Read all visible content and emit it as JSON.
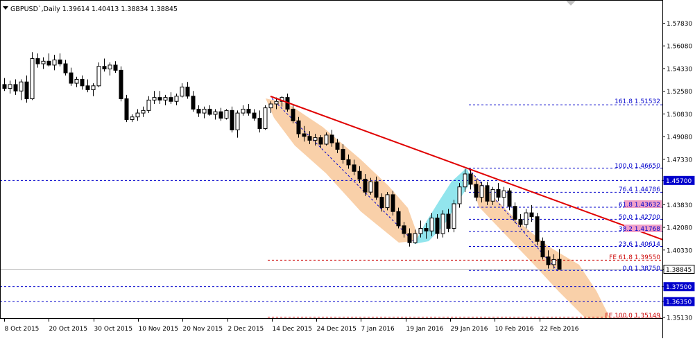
{
  "header": {
    "symbol_line": "GBPUSD`,Daily  1.39614 1.40413 1.38834 1.38845"
  },
  "colors": {
    "background": "#ffffff",
    "grid_frame": "#000000",
    "bull_candle": "#ffffff",
    "bear_candle": "#000000",
    "trendline": "#e00000",
    "fib_line": "#0000cc",
    "fe_line": "#cc0000",
    "down_channel": "#f8c89a",
    "up_channel": "#7fe0ea",
    "label_box": "#f0a0c8"
  },
  "price_axis": {
    "ticks": [
      "1.57830",
      "1.56080",
      "1.54330",
      "1.52580",
      "1.50830",
      "1.49080",
      "1.47330",
      "1.45700",
      "1.43830",
      "1.42080",
      "1.40330",
      "1.38845",
      "1.37500",
      "1.36350",
      "1.35130"
    ],
    "highlighted": [
      "1.45700",
      "1.38845",
      "1.37500",
      "1.36350"
    ]
  },
  "time_axis": {
    "labels": [
      "8 Oct 2015",
      "20 Oct 2015",
      "30 Oct 2015",
      "10 Nov 2015",
      "20 Nov 2015",
      "2 Dec 2015",
      "14 Dec 2015",
      "24 Dec 2015",
      "7 Jan 2016",
      "19 Jan 2016",
      "29 Jan 2016",
      "10 Feb 2016",
      "22 Feb 2016"
    ]
  },
  "fib_labels": [
    "161.8  1.51532",
    "100.0  1.46650",
    "76.4  1.44786",
    "61.8  1.43632",
    "50.0  1.42700",
    "38.2  1.41768",
    "23.6  1.40614",
    "0.0  1.38750"
  ],
  "fe_labels": [
    "FE 61.8  1.39550",
    "FE 100.0  1.35149"
  ],
  "chart_data": {
    "type": "candlestick",
    "symbol": "GBPUSD",
    "timeframe": "Daily",
    "last_bar": {
      "open": 1.39614,
      "high": 1.40413,
      "low": 1.38834,
      "close": 1.38845
    },
    "ylim": [
      1.35,
      1.585
    ],
    "fib_retracement": [
      {
        "level": "161.8",
        "price": 1.51532
      },
      {
        "level": "100.0",
        "price": 1.4665
      },
      {
        "level": "76.4",
        "price": 1.44786
      },
      {
        "level": "61.8",
        "price": 1.43632
      },
      {
        "level": "50.0",
        "price": 1.427
      },
      {
        "level": "38.2",
        "price": 1.41768
      },
      {
        "level": "23.6",
        "price": 1.40614
      },
      {
        "level": "0.0",
        "price": 1.3875
      }
    ],
    "fib_expansion": [
      {
        "level": "FE 61.8",
        "price": 1.3955
      },
      {
        "level": "FE 100.0",
        "price": 1.35149
      }
    ],
    "horizontal_levels": [
      1.457,
      1.375,
      1.3635
    ],
    "candles": [
      {
        "o": 1.531,
        "h": 1.536,
        "l": 1.526,
        "c": 1.528
      },
      {
        "o": 1.528,
        "h": 1.534,
        "l": 1.524,
        "c": 1.531
      },
      {
        "o": 1.531,
        "h": 1.535,
        "l": 1.523,
        "c": 1.526
      },
      {
        "o": 1.526,
        "h": 1.535,
        "l": 1.519,
        "c": 1.533
      },
      {
        "o": 1.533,
        "h": 1.538,
        "l": 1.517,
        "c": 1.52
      },
      {
        "o": 1.52,
        "h": 1.556,
        "l": 1.519,
        "c": 1.551
      },
      {
        "o": 1.551,
        "h": 1.555,
        "l": 1.544,
        "c": 1.547
      },
      {
        "o": 1.547,
        "h": 1.552,
        "l": 1.543,
        "c": 1.549
      },
      {
        "o": 1.549,
        "h": 1.555,
        "l": 1.545,
        "c": 1.546
      },
      {
        "o": 1.546,
        "h": 1.554,
        "l": 1.542,
        "c": 1.55
      },
      {
        "o": 1.55,
        "h": 1.555,
        "l": 1.545,
        "c": 1.547
      },
      {
        "o": 1.547,
        "h": 1.55,
        "l": 1.538,
        "c": 1.54
      },
      {
        "o": 1.54,
        "h": 1.544,
        "l": 1.53,
        "c": 1.532
      },
      {
        "o": 1.532,
        "h": 1.537,
        "l": 1.529,
        "c": 1.535
      },
      {
        "o": 1.535,
        "h": 1.538,
        "l": 1.527,
        "c": 1.53
      },
      {
        "o": 1.53,
        "h": 1.535,
        "l": 1.525,
        "c": 1.527
      },
      {
        "o": 1.527,
        "h": 1.532,
        "l": 1.522,
        "c": 1.53
      },
      {
        "o": 1.53,
        "h": 1.548,
        "l": 1.529,
        "c": 1.545
      },
      {
        "o": 1.545,
        "h": 1.551,
        "l": 1.541,
        "c": 1.543
      },
      {
        "o": 1.543,
        "h": 1.548,
        "l": 1.538,
        "c": 1.546
      },
      {
        "o": 1.546,
        "h": 1.549,
        "l": 1.54,
        "c": 1.542
      },
      {
        "o": 1.542,
        "h": 1.545,
        "l": 1.518,
        "c": 1.52
      },
      {
        "o": 1.52,
        "h": 1.523,
        "l": 1.502,
        "c": 1.504
      },
      {
        "o": 1.504,
        "h": 1.508,
        "l": 1.502,
        "c": 1.506
      },
      {
        "o": 1.506,
        "h": 1.512,
        "l": 1.503,
        "c": 1.509
      },
      {
        "o": 1.509,
        "h": 1.514,
        "l": 1.506,
        "c": 1.511
      },
      {
        "o": 1.511,
        "h": 1.522,
        "l": 1.509,
        "c": 1.519
      },
      {
        "o": 1.519,
        "h": 1.526,
        "l": 1.516,
        "c": 1.521
      },
      {
        "o": 1.521,
        "h": 1.526,
        "l": 1.516,
        "c": 1.519
      },
      {
        "o": 1.519,
        "h": 1.523,
        "l": 1.515,
        "c": 1.521
      },
      {
        "o": 1.521,
        "h": 1.525,
        "l": 1.516,
        "c": 1.518
      },
      {
        "o": 1.518,
        "h": 1.524,
        "l": 1.515,
        "c": 1.522
      },
      {
        "o": 1.522,
        "h": 1.532,
        "l": 1.521,
        "c": 1.529
      },
      {
        "o": 1.529,
        "h": 1.533,
        "l": 1.52,
        "c": 1.522
      },
      {
        "o": 1.522,
        "h": 1.526,
        "l": 1.51,
        "c": 1.512
      },
      {
        "o": 1.512,
        "h": 1.515,
        "l": 1.506,
        "c": 1.509
      },
      {
        "o": 1.509,
        "h": 1.514,
        "l": 1.505,
        "c": 1.512
      },
      {
        "o": 1.512,
        "h": 1.515,
        "l": 1.507,
        "c": 1.508
      },
      {
        "o": 1.508,
        "h": 1.512,
        "l": 1.504,
        "c": 1.51
      },
      {
        "o": 1.51,
        "h": 1.513,
        "l": 1.503,
        "c": 1.505
      },
      {
        "o": 1.505,
        "h": 1.512,
        "l": 1.504,
        "c": 1.511
      },
      {
        "o": 1.511,
        "h": 1.514,
        "l": 1.494,
        "c": 1.496
      },
      {
        "o": 1.496,
        "h": 1.511,
        "l": 1.49,
        "c": 1.509
      },
      {
        "o": 1.509,
        "h": 1.515,
        "l": 1.507,
        "c": 1.512
      },
      {
        "o": 1.512,
        "h": 1.516,
        "l": 1.507,
        "c": 1.509
      },
      {
        "o": 1.509,
        "h": 1.512,
        "l": 1.503,
        "c": 1.505
      },
      {
        "o": 1.505,
        "h": 1.511,
        "l": 1.494,
        "c": 1.497
      },
      {
        "o": 1.497,
        "h": 1.515,
        "l": 1.496,
        "c": 1.513
      },
      {
        "o": 1.513,
        "h": 1.518,
        "l": 1.509,
        "c": 1.516
      },
      {
        "o": 1.516,
        "h": 1.521,
        "l": 1.512,
        "c": 1.518
      },
      {
        "o": 1.518,
        "h": 1.522,
        "l": 1.514,
        "c": 1.521
      },
      {
        "o": 1.521,
        "h": 1.524,
        "l": 1.51,
        "c": 1.512
      },
      {
        "o": 1.512,
        "h": 1.516,
        "l": 1.501,
        "c": 1.503
      },
      {
        "o": 1.503,
        "h": 1.506,
        "l": 1.49,
        "c": 1.493
      },
      {
        "o": 1.493,
        "h": 1.499,
        "l": 1.487,
        "c": 1.491
      },
      {
        "o": 1.491,
        "h": 1.495,
        "l": 1.485,
        "c": 1.488
      },
      {
        "o": 1.488,
        "h": 1.493,
        "l": 1.484,
        "c": 1.49
      },
      {
        "o": 1.49,
        "h": 1.492,
        "l": 1.482,
        "c": 1.485
      },
      {
        "o": 1.485,
        "h": 1.494,
        "l": 1.484,
        "c": 1.492
      },
      {
        "o": 1.492,
        "h": 1.496,
        "l": 1.483,
        "c": 1.486
      },
      {
        "o": 1.486,
        "h": 1.489,
        "l": 1.478,
        "c": 1.481
      },
      {
        "o": 1.481,
        "h": 1.485,
        "l": 1.47,
        "c": 1.473
      },
      {
        "o": 1.473,
        "h": 1.477,
        "l": 1.466,
        "c": 1.469
      },
      {
        "o": 1.469,
        "h": 1.473,
        "l": 1.461,
        "c": 1.464
      },
      {
        "o": 1.464,
        "h": 1.468,
        "l": 1.455,
        "c": 1.458
      },
      {
        "o": 1.458,
        "h": 1.462,
        "l": 1.445,
        "c": 1.448
      },
      {
        "o": 1.448,
        "h": 1.459,
        "l": 1.446,
        "c": 1.456
      },
      {
        "o": 1.456,
        "h": 1.46,
        "l": 1.442,
        "c": 1.444
      },
      {
        "o": 1.444,
        "h": 1.447,
        "l": 1.433,
        "c": 1.436
      },
      {
        "o": 1.436,
        "h": 1.448,
        "l": 1.434,
        "c": 1.446
      },
      {
        "o": 1.446,
        "h": 1.449,
        "l": 1.43,
        "c": 1.433
      },
      {
        "o": 1.433,
        "h": 1.436,
        "l": 1.42,
        "c": 1.422
      },
      {
        "o": 1.422,
        "h": 1.425,
        "l": 1.413,
        "c": 1.416
      },
      {
        "o": 1.416,
        "h": 1.42,
        "l": 1.406,
        "c": 1.409
      },
      {
        "o": 1.409,
        "h": 1.419,
        "l": 1.408,
        "c": 1.416
      },
      {
        "o": 1.416,
        "h": 1.426,
        "l": 1.413,
        "c": 1.42
      },
      {
        "o": 1.42,
        "h": 1.424,
        "l": 1.412,
        "c": 1.418
      },
      {
        "o": 1.418,
        "h": 1.432,
        "l": 1.414,
        "c": 1.428
      },
      {
        "o": 1.428,
        "h": 1.431,
        "l": 1.412,
        "c": 1.416
      },
      {
        "o": 1.416,
        "h": 1.434,
        "l": 1.413,
        "c": 1.431
      },
      {
        "o": 1.431,
        "h": 1.435,
        "l": 1.417,
        "c": 1.42
      },
      {
        "o": 1.42,
        "h": 1.442,
        "l": 1.417,
        "c": 1.439
      },
      {
        "o": 1.439,
        "h": 1.455,
        "l": 1.436,
        "c": 1.452
      },
      {
        "o": 1.452,
        "h": 1.466,
        "l": 1.448,
        "c": 1.462
      },
      {
        "o": 1.462,
        "h": 1.466,
        "l": 1.45,
        "c": 1.454
      },
      {
        "o": 1.454,
        "h": 1.458,
        "l": 1.441,
        "c": 1.444
      },
      {
        "o": 1.444,
        "h": 1.456,
        "l": 1.44,
        "c": 1.453
      },
      {
        "o": 1.453,
        "h": 1.456,
        "l": 1.438,
        "c": 1.441
      },
      {
        "o": 1.441,
        "h": 1.452,
        "l": 1.438,
        "c": 1.45
      },
      {
        "o": 1.45,
        "h": 1.455,
        "l": 1.441,
        "c": 1.444
      },
      {
        "o": 1.444,
        "h": 1.452,
        "l": 1.437,
        "c": 1.449
      },
      {
        "o": 1.449,
        "h": 1.451,
        "l": 1.434,
        "c": 1.437
      },
      {
        "o": 1.437,
        "h": 1.44,
        "l": 1.424,
        "c": 1.427
      },
      {
        "o": 1.427,
        "h": 1.431,
        "l": 1.421,
        "c": 1.423
      },
      {
        "o": 1.423,
        "h": 1.435,
        "l": 1.42,
        "c": 1.432
      },
      {
        "o": 1.432,
        "h": 1.438,
        "l": 1.425,
        "c": 1.429
      },
      {
        "o": 1.429,
        "h": 1.432,
        "l": 1.407,
        "c": 1.41
      },
      {
        "o": 1.41,
        "h": 1.413,
        "l": 1.396,
        "c": 1.398
      },
      {
        "o": 1.398,
        "h": 1.403,
        "l": 1.389,
        "c": 1.392
      },
      {
        "o": 1.392,
        "h": 1.4,
        "l": 1.389,
        "c": 1.396
      },
      {
        "o": 1.39614,
        "h": 1.40413,
        "l": 1.38834,
        "c": 1.38845
      }
    ]
  }
}
